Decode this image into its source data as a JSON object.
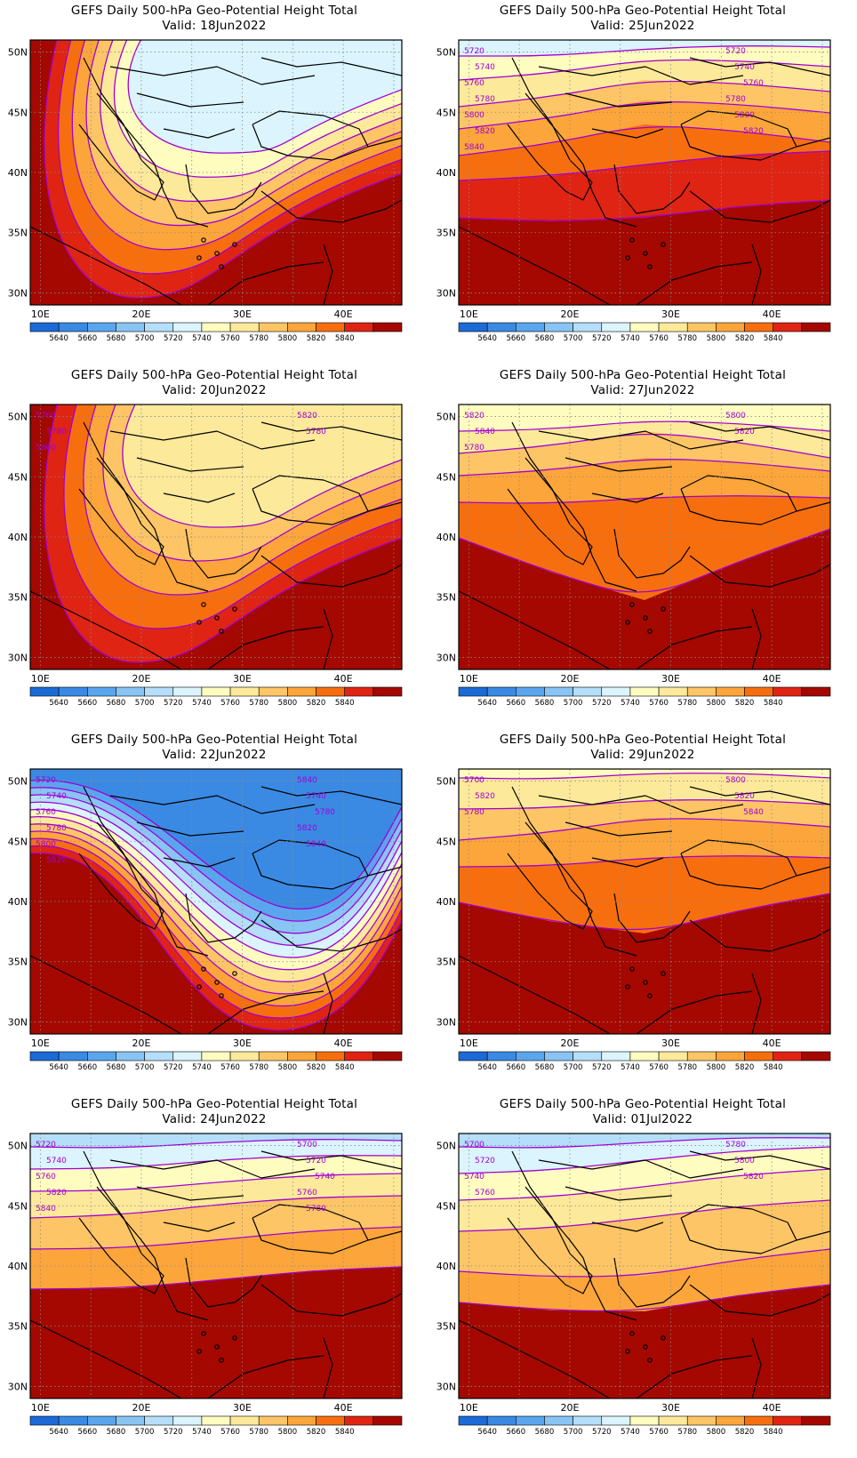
{
  "panels": [
    {
      "title": "GEFS Daily 500-hPa Geo-Potential Height Total",
      "valid": "Valid:  18Jun2022",
      "pattern": "ridge18",
      "contour_labels": []
    },
    {
      "title": "GEFS Daily 500-hPa Geo-Potential Height Total",
      "valid": "Valid:  25Jun2022",
      "pattern": "zonal25",
      "contour_labels": [
        "5720",
        "5740",
        "5760",
        "5780",
        "5800",
        "5820",
        "5840",
        "5720",
        "5740",
        "5760",
        "5780",
        "5800",
        "5820"
      ]
    },
    {
      "title": "GEFS Daily 500-hPa Geo-Potential Height Total",
      "valid": "Valid:  20Jun2022",
      "pattern": "ridge20",
      "contour_labels": [
        "5760",
        "5780",
        "5800",
        "5820",
        "5780"
      ]
    },
    {
      "title": "GEFS Daily 500-hPa Geo-Potential Height Total",
      "valid": "Valid:  27Jun2022",
      "pattern": "zonal27",
      "contour_labels": [
        "5820",
        "5840",
        "5780",
        "5800",
        "5820"
      ]
    },
    {
      "title": "GEFS Daily 500-hPa Geo-Potential Height Total",
      "valid": "Valid:  22Jun2022",
      "pattern": "trough22",
      "contour_labels": [
        "5720",
        "5740",
        "5760",
        "5780",
        "5800",
        "5820",
        "5840",
        "5740",
        "5780",
        "5820",
        "5840"
      ]
    },
    {
      "title": "GEFS Daily 500-hPa Geo-Potential Height Total",
      "valid": "Valid:  29Jun2022",
      "pattern": "zonal29",
      "contour_labels": [
        "5700",
        "5820",
        "5780",
        "5800",
        "5820",
        "5840"
      ]
    },
    {
      "title": "GEFS Daily 500-hPa Geo-Potential Height Total",
      "valid": "Valid:  24Jun2022",
      "pattern": "zonal24",
      "contour_labels": [
        "5720",
        "5740",
        "5760",
        "5820",
        "5840",
        "5700",
        "5720",
        "5740",
        "5760",
        "5780"
      ]
    },
    {
      "title": "GEFS Daily 500-hPa Geo-Potential Height Total",
      "valid": "Valid:  01Jul2022",
      "pattern": "zonal01",
      "contour_labels": [
        "5700",
        "5720",
        "5740",
        "5760",
        "5780",
        "5800",
        "5820"
      ]
    }
  ],
  "lat_labels": [
    "50N",
    "45N",
    "40N",
    "35N",
    "30N"
  ],
  "lon_labels": [
    "10E",
    "20E",
    "30E",
    "40E"
  ],
  "colorbar_labels": [
    "5640",
    "5660",
    "5680",
    "5700",
    "5720",
    "5740",
    "5760",
    "5780",
    "5800",
    "5820",
    "5840"
  ],
  "colorbar_colors": [
    "#1c6ad6",
    "#3a8ae3",
    "#5aa6ee",
    "#88c4f4",
    "#b4def9",
    "#dbf4fd",
    "#fffcc0",
    "#fde99a",
    "#fdc566",
    "#fca53a",
    "#f76e0f",
    "#df2414",
    "#a40800"
  ],
  "contour_color": "#a100d6",
  "coast_color": "#000000"
}
